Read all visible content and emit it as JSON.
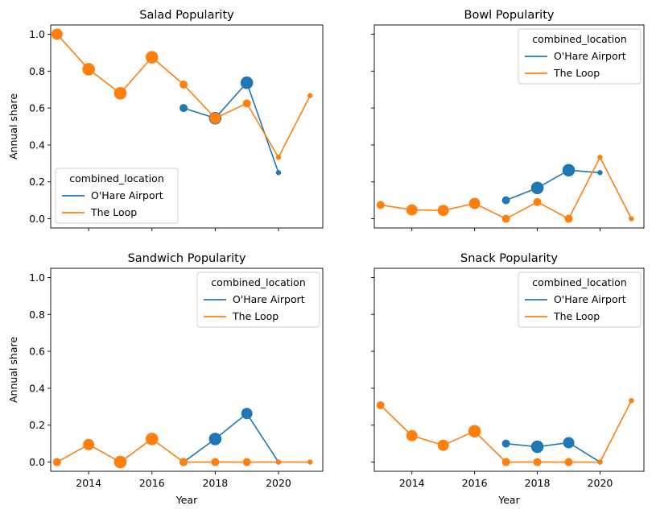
{
  "chart_data": [
    {
      "type": "line",
      "title": "Salad Popularity",
      "xlabel": "",
      "ylabel": "Annual share",
      "xlim": [
        2012.8,
        2021.4
      ],
      "ylim": [
        -0.05,
        1.05
      ],
      "x_ticks": [
        2014,
        2016,
        2018,
        2020
      ],
      "y_ticks": [
        0.0,
        0.2,
        0.4,
        0.6,
        0.8,
        1.0
      ],
      "show_x_tick_labels": false,
      "show_y_tick_labels": true,
      "legend": {
        "title": "combined_location",
        "position": "lower-left"
      },
      "series": [
        {
          "name": "O'Hare Airport",
          "color": "#1f77b4",
          "points": [
            {
              "x": 2017,
              "y": 0.6,
              "size": "small"
            },
            {
              "x": 2018,
              "y": 0.545,
              "size": "large"
            },
            {
              "x": 2019,
              "y": 0.737,
              "size": "large"
            },
            {
              "x": 2020,
              "y": 0.25,
              "size": "tiny"
            }
          ]
        },
        {
          "name": "The Loop",
          "color": "#ff7f0e",
          "points": [
            {
              "x": 2013,
              "y": 1.0,
              "size": "medium"
            },
            {
              "x": 2014,
              "y": 0.81,
              "size": "large"
            },
            {
              "x": 2015,
              "y": 0.68,
              "size": "large"
            },
            {
              "x": 2016,
              "y": 0.875,
              "size": "large"
            },
            {
              "x": 2017,
              "y": 0.727,
              "size": "small"
            },
            {
              "x": 2018,
              "y": 0.545,
              "size": "medium"
            },
            {
              "x": 2019,
              "y": 0.625,
              "size": "small"
            },
            {
              "x": 2020,
              "y": 0.333,
              "size": "tiny"
            },
            {
              "x": 2021,
              "y": 0.667,
              "size": "tiny"
            }
          ]
        }
      ]
    },
    {
      "type": "line",
      "title": "Bowl Popularity",
      "xlabel": "",
      "ylabel": "",
      "xlim": [
        2012.8,
        2021.4
      ],
      "ylim": [
        -0.05,
        1.05
      ],
      "x_ticks": [
        2014,
        2016,
        2018,
        2020
      ],
      "y_ticks": [
        0.0,
        0.2,
        0.4,
        0.6,
        0.8,
        1.0
      ],
      "show_x_tick_labels": false,
      "show_y_tick_labels": false,
      "legend": {
        "title": "combined_location",
        "position": "upper-right"
      },
      "series": [
        {
          "name": "O'Hare Airport",
          "color": "#1f77b4",
          "points": [
            {
              "x": 2017,
              "y": 0.1,
              "size": "small"
            },
            {
              "x": 2018,
              "y": 0.167,
              "size": "large"
            },
            {
              "x": 2019,
              "y": 0.263,
              "size": "large"
            },
            {
              "x": 2020,
              "y": 0.25,
              "size": "tiny"
            }
          ]
        },
        {
          "name": "The Loop",
          "color": "#ff7f0e",
          "points": [
            {
              "x": 2013,
              "y": 0.075,
              "size": "small"
            },
            {
              "x": 2014,
              "y": 0.048,
              "size": "medium"
            },
            {
              "x": 2015,
              "y": 0.045,
              "size": "medium"
            },
            {
              "x": 2016,
              "y": 0.083,
              "size": "medium"
            },
            {
              "x": 2017,
              "y": 0.0,
              "size": "small"
            },
            {
              "x": 2018,
              "y": 0.091,
              "size": "small"
            },
            {
              "x": 2019,
              "y": 0.0,
              "size": "small"
            },
            {
              "x": 2020,
              "y": 0.333,
              "size": "tiny"
            },
            {
              "x": 2021,
              "y": 0.0,
              "size": "tiny"
            }
          ]
        }
      ]
    },
    {
      "type": "line",
      "title": "Sandwich Popularity",
      "xlabel": "Year",
      "ylabel": "Annual share",
      "xlim": [
        2012.8,
        2021.4
      ],
      "ylim": [
        -0.05,
        1.05
      ],
      "x_ticks": [
        2014,
        2016,
        2018,
        2020
      ],
      "y_ticks": [
        0.0,
        0.2,
        0.4,
        0.6,
        0.8,
        1.0
      ],
      "show_x_tick_labels": true,
      "show_y_tick_labels": true,
      "legend": {
        "title": "combined_location",
        "position": "upper-right"
      },
      "series": [
        {
          "name": "O'Hare Airport",
          "color": "#1f77b4",
          "points": [
            {
              "x": 2017,
              "y": 0.0,
              "size": "small"
            },
            {
              "x": 2018,
              "y": 0.125,
              "size": "large"
            },
            {
              "x": 2019,
              "y": 0.263,
              "size": "medium"
            },
            {
              "x": 2020,
              "y": 0.0,
              "size": "tiny"
            }
          ]
        },
        {
          "name": "The Loop",
          "color": "#ff7f0e",
          "points": [
            {
              "x": 2013,
              "y": 0.0,
              "size": "small"
            },
            {
              "x": 2014,
              "y": 0.095,
              "size": "medium"
            },
            {
              "x": 2015,
              "y": 0.0,
              "size": "large"
            },
            {
              "x": 2016,
              "y": 0.125,
              "size": "large"
            },
            {
              "x": 2017,
              "y": 0.0,
              "size": "small"
            },
            {
              "x": 2018,
              "y": 0.0,
              "size": "small"
            },
            {
              "x": 2019,
              "y": 0.0,
              "size": "small"
            },
            {
              "x": 2020,
              "y": 0.0,
              "size": "tiny"
            },
            {
              "x": 2021,
              "y": 0.0,
              "size": "tiny"
            }
          ]
        }
      ]
    },
    {
      "type": "line",
      "title": "Snack Popularity",
      "xlabel": "Year",
      "ylabel": "",
      "xlim": [
        2012.8,
        2021.4
      ],
      "ylim": [
        -0.05,
        1.05
      ],
      "x_ticks": [
        2014,
        2016,
        2018,
        2020
      ],
      "y_ticks": [
        0.0,
        0.2,
        0.4,
        0.6,
        0.8,
        1.0
      ],
      "show_x_tick_labels": true,
      "show_y_tick_labels": false,
      "legend": {
        "title": "combined_location",
        "position": "upper-right"
      },
      "series": [
        {
          "name": "O'Hare Airport",
          "color": "#1f77b4",
          "points": [
            {
              "x": 2017,
              "y": 0.1,
              "size": "small"
            },
            {
              "x": 2018,
              "y": 0.083,
              "size": "large"
            },
            {
              "x": 2019,
              "y": 0.105,
              "size": "medium"
            },
            {
              "x": 2020,
              "y": 0.0,
              "size": "tiny"
            }
          ]
        },
        {
          "name": "The Loop",
          "color": "#ff7f0e",
          "points": [
            {
              "x": 2013,
              "y": 0.308,
              "size": "small"
            },
            {
              "x": 2014,
              "y": 0.143,
              "size": "medium"
            },
            {
              "x": 2015,
              "y": 0.091,
              "size": "medium"
            },
            {
              "x": 2016,
              "y": 0.167,
              "size": "large"
            },
            {
              "x": 2017,
              "y": 0.0,
              "size": "small"
            },
            {
              "x": 2018,
              "y": 0.0,
              "size": "small"
            },
            {
              "x": 2019,
              "y": 0.0,
              "size": "small"
            },
            {
              "x": 2020,
              "y": 0.0,
              "size": "tiny"
            },
            {
              "x": 2021,
              "y": 0.333,
              "size": "tiny"
            }
          ]
        }
      ]
    }
  ]
}
